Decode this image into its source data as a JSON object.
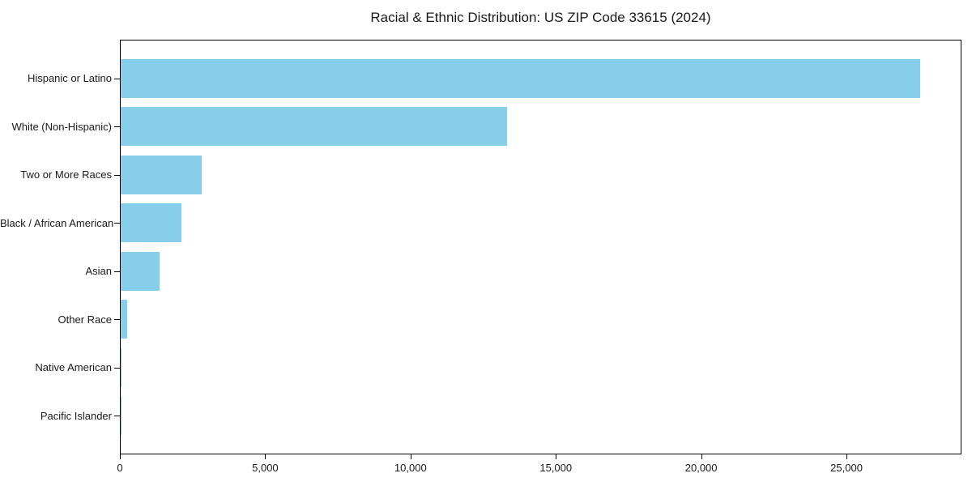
{
  "chart_data": {
    "type": "bar",
    "orientation": "horizontal",
    "title": "Racial & Ethnic Distribution: US ZIP Code 33615 (2024)",
    "categories": [
      "Hispanic or Latino",
      "White (Non-Hispanic)",
      "Two or More Races",
      "Black / African American",
      "Asian",
      "Other Race",
      "Native American",
      "Pacific Islander"
    ],
    "values": [
      27500,
      13300,
      2800,
      2100,
      1330,
      220,
      40,
      10
    ],
    "xlabel": "",
    "ylabel": "",
    "xlim": [
      0,
      28900
    ],
    "xticks": [
      0,
      5000,
      10000,
      15000,
      20000,
      25000
    ],
    "xtick_labels": [
      "0",
      "5,000",
      "10,000",
      "15,000",
      "20,000",
      "25,000"
    ],
    "bar_color": "#87CEEB",
    "axis_color": "#000000",
    "text_color": "#1a1a1a",
    "grid": false,
    "legend": null
  }
}
